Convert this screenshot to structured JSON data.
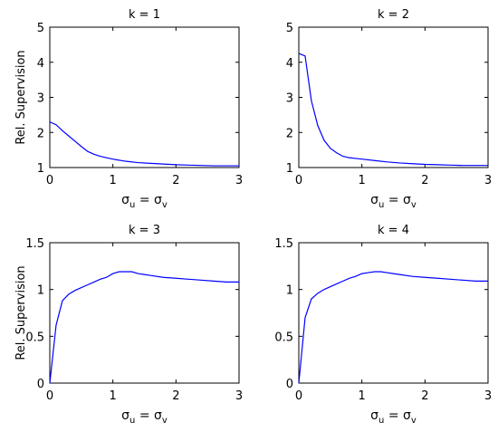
{
  "chart_data": [
    {
      "type": "line",
      "title": "k = 1",
      "ylabel": "Rel. Supervision",
      "xlabel": {
        "var": "σ",
        "sub1": "u",
        "eq": " = ",
        "var2": "σ",
        "sub2": "v"
      },
      "xlim": [
        0,
        3
      ],
      "ylim": [
        1,
        5
      ],
      "xticks": [
        "0",
        "1",
        "2",
        "3"
      ],
      "yticks": [
        "1",
        "2",
        "3",
        "4",
        "5"
      ],
      "grid": false,
      "color": "#0000ff",
      "x": [
        0,
        0.1,
        0.2,
        0.3,
        0.4,
        0.5,
        0.6,
        0.7,
        0.8,
        0.9,
        1.0,
        1.2,
        1.4,
        1.6,
        1.8,
        2.0,
        2.2,
        2.4,
        2.6,
        2.8,
        3.0
      ],
      "y": [
        2.3,
        2.22,
        2.05,
        1.9,
        1.75,
        1.6,
        1.46,
        1.38,
        1.32,
        1.28,
        1.24,
        1.18,
        1.14,
        1.12,
        1.1,
        1.08,
        1.07,
        1.06,
        1.05,
        1.05,
        1.05
      ]
    },
    {
      "type": "line",
      "title": "k = 2",
      "ylabel": "",
      "xlabel": {
        "var": "σ",
        "sub1": "u",
        "eq": " = ",
        "var2": "σ",
        "sub2": "v"
      },
      "xlim": [
        0,
        3
      ],
      "ylim": [
        1,
        5
      ],
      "xticks": [
        "0",
        "1",
        "2",
        "3"
      ],
      "yticks": [
        "1",
        "2",
        "3",
        "4",
        "5"
      ],
      "grid": false,
      "color": "#0000ff",
      "x": [
        0,
        0.1,
        0.2,
        0.3,
        0.4,
        0.5,
        0.6,
        0.7,
        0.8,
        0.9,
        1.0,
        1.2,
        1.4,
        1.6,
        1.8,
        2.0,
        2.2,
        2.4,
        2.6,
        2.8,
        3.0
      ],
      "y": [
        4.25,
        4.18,
        2.9,
        2.2,
        1.78,
        1.55,
        1.42,
        1.32,
        1.28,
        1.26,
        1.24,
        1.2,
        1.16,
        1.13,
        1.11,
        1.09,
        1.08,
        1.07,
        1.06,
        1.06,
        1.06
      ]
    },
    {
      "type": "line",
      "title": "k = 3",
      "ylabel": "Rel. Supervision",
      "xlabel": {
        "var": "σ",
        "sub1": "u",
        "eq": " = ",
        "var2": "σ",
        "sub2": "v"
      },
      "xlim": [
        0,
        3
      ],
      "ylim": [
        0,
        1.5
      ],
      "xticks": [
        "0",
        "1",
        "2",
        "3"
      ],
      "yticks": [
        "0",
        "0.5",
        "1",
        "1.5"
      ],
      "grid": false,
      "color": "#0000ff",
      "x": [
        0,
        0.1,
        0.2,
        0.3,
        0.4,
        0.5,
        0.6,
        0.7,
        0.8,
        0.9,
        1.0,
        1.1,
        1.2,
        1.3,
        1.4,
        1.5,
        1.6,
        1.8,
        2.0,
        2.2,
        2.4,
        2.6,
        2.8,
        3.0
      ],
      "y": [
        0.0,
        0.62,
        0.88,
        0.95,
        0.99,
        1.02,
        1.05,
        1.08,
        1.11,
        1.13,
        1.17,
        1.19,
        1.19,
        1.19,
        1.17,
        1.16,
        1.15,
        1.13,
        1.12,
        1.11,
        1.1,
        1.09,
        1.08,
        1.08
      ]
    },
    {
      "type": "line",
      "title": "k = 4",
      "ylabel": "",
      "xlabel": {
        "var": "σ",
        "sub1": "u",
        "eq": " = ",
        "var2": "σ",
        "sub2": "v"
      },
      "xlim": [
        0,
        3
      ],
      "ylim": [
        0,
        1.5
      ],
      "xticks": [
        "0",
        "1",
        "2",
        "3"
      ],
      "yticks": [
        "0",
        "0.5",
        "1",
        "1.5"
      ],
      "grid": false,
      "color": "#0000ff",
      "x": [
        0,
        0.1,
        0.2,
        0.3,
        0.4,
        0.5,
        0.6,
        0.7,
        0.8,
        0.9,
        1.0,
        1.1,
        1.2,
        1.3,
        1.4,
        1.5,
        1.6,
        1.8,
        2.0,
        2.2,
        2.4,
        2.6,
        2.8,
        3.0
      ],
      "y": [
        0.0,
        0.7,
        0.9,
        0.96,
        1.0,
        1.03,
        1.06,
        1.09,
        1.12,
        1.14,
        1.17,
        1.18,
        1.19,
        1.19,
        1.18,
        1.17,
        1.16,
        1.14,
        1.13,
        1.12,
        1.11,
        1.1,
        1.09,
        1.09
      ]
    }
  ]
}
